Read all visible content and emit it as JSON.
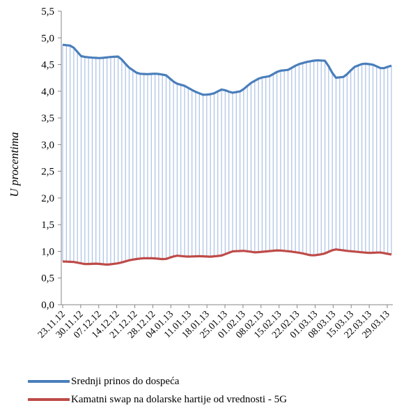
{
  "chart_data": {
    "type": "line",
    "ylabel": "U procentima",
    "ylim": [
      0,
      5.5
    ],
    "yticks": [
      "0,0",
      "0,5",
      "1,0",
      "1,5",
      "2,0",
      "2,5",
      "3,0",
      "3,5",
      "4,0",
      "4,5",
      "5,0",
      "5,5"
    ],
    "x_ticks": [
      "23.11.12",
      "30.11.12",
      "07.12.12",
      "14.12.12",
      "21.12.12",
      "28.12.12",
      "04.01.13",
      "11.01.13",
      "18.01.13",
      "25.01.13",
      "01.02.13",
      "08.02.13",
      "15.02.13",
      "22.02.13",
      "01.03.13",
      "08.03.13",
      "15.03.13",
      "22.03.13",
      "29.03.13"
    ],
    "drop_lines": true,
    "grid": false,
    "legend_position": "bottom",
    "series": [
      {
        "name": "Srednji prinos do dospeća",
        "color": "#4a7ebb",
        "values": [
          4.87,
          4.85,
          4.65,
          4.63,
          4.62,
          4.64,
          4.65,
          4.45,
          4.33,
          4.32,
          4.33,
          4.3,
          4.15,
          4.1,
          4.0,
          3.93,
          3.95,
          4.04,
          3.97,
          4.0,
          4.15,
          4.25,
          4.28,
          4.38,
          4.4,
          4.5,
          4.55,
          4.58,
          4.57,
          4.25,
          4.27,
          4.45,
          4.52,
          4.5,
          4.42,
          4.48
        ]
      },
      {
        "name": "Kamatni swap na dolarske hartije od vrednosti - 5G",
        "color": "#be4b48",
        "values": [
          0.81,
          0.8,
          0.76,
          0.77,
          0.75,
          0.78,
          0.84,
          0.87,
          0.87,
          0.85,
          0.92,
          0.9,
          0.91,
          0.9,
          0.92,
          1.0,
          1.01,
          0.98,
          1.0,
          1.02,
          1.0,
          0.97,
          0.92,
          0.95,
          1.04,
          1.01,
          0.99,
          0.97,
          0.98,
          0.94
        ]
      }
    ]
  }
}
